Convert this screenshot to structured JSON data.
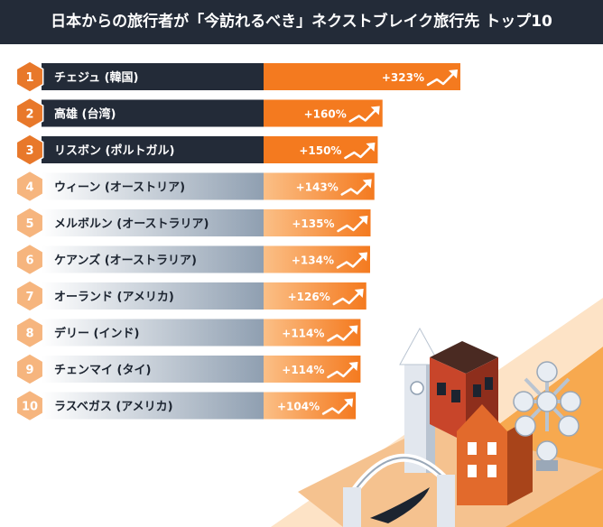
{
  "chart_data": {
    "type": "bar",
    "title": "日本からの旅行者が「今訪れるべき」ネクストブレイク旅行先 トップ10",
    "categories": [
      "チェジュ (韓国)",
      "高雄 (台湾)",
      "リスボン (ポルトガル)",
      "ウィーン (オーストリア)",
      "メルボルン (オーストラリア)",
      "ケアンズ (オーストラリア)",
      "オーランド (アメリカ)",
      "デリー (インド)",
      "チェンマイ (タイ)",
      "ラスベガス (アメリカ)"
    ],
    "ranks": [
      "1",
      "2",
      "3",
      "4",
      "5",
      "6",
      "7",
      "8",
      "9",
      "10"
    ],
    "values": [
      323,
      160,
      150,
      143,
      135,
      134,
      126,
      114,
      114,
      104
    ],
    "value_labels": [
      "+323%",
      "+160%",
      "+150%",
      "+143%",
      "+135%",
      "+134%",
      "+126%",
      "+114%",
      "+114%",
      "+104%"
    ],
    "value_unit": "%",
    "orientation": "horizontal",
    "sorted": "descending",
    "colors": {
      "header": "#232b38",
      "dark_label": "#232b38",
      "accent_orange": "#f47a1f",
      "light_orange": "#fbbf86",
      "hexagon_dark": "#e8782a",
      "hexagon_light": "#f6b57e",
      "gray_blue": "#8f9fb1"
    },
    "grid": false,
    "legend": "none"
  }
}
